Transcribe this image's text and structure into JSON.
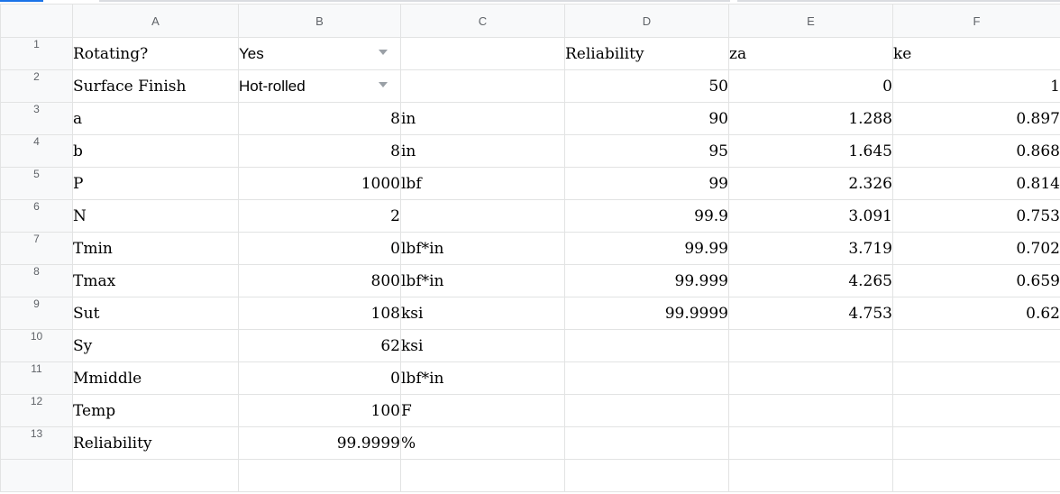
{
  "columns": [
    "A",
    "B",
    "C",
    "D",
    "E",
    "F"
  ],
  "rows": [
    {
      "num": "1",
      "a": "Rotating?",
      "b": "Yes",
      "c": "",
      "d": "Reliability",
      "e": "za",
      "f": "ke"
    },
    {
      "num": "2",
      "a": "Surface Finish",
      "b": "Hot-rolled",
      "c": "",
      "d": "50",
      "e": "0",
      "f": "1"
    },
    {
      "num": "3",
      "a": "a",
      "b": "8",
      "c": "in",
      "d": "90",
      "e": "1.288",
      "f": "0.897"
    },
    {
      "num": "4",
      "a": "b",
      "b": "8",
      "c": "in",
      "d": "95",
      "e": "1.645",
      "f": "0.868"
    },
    {
      "num": "5",
      "a": "P",
      "b": "1000",
      "c": "lbf",
      "d": "99",
      "e": "2.326",
      "f": "0.814"
    },
    {
      "num": "6",
      "a": "N",
      "b": "2",
      "c": "",
      "d": "99.9",
      "e": "3.091",
      "f": "0.753"
    },
    {
      "num": "7",
      "a": "Tmin",
      "b": "0",
      "c": "lbf*in",
      "d": "99.99",
      "e": "3.719",
      "f": "0.702"
    },
    {
      "num": "8",
      "a": "Tmax",
      "b": "800",
      "c": "lbf*in",
      "d": "99.999",
      "e": "4.265",
      "f": "0.659"
    },
    {
      "num": "9",
      "a": "Sut",
      "b": "108",
      "c": "ksi",
      "d": "99.9999",
      "e": "4.753",
      "f": "0.62"
    },
    {
      "num": "10",
      "a": "Sy",
      "b": "62",
      "c": "ksi",
      "d": "",
      "e": "",
      "f": ""
    },
    {
      "num": "11",
      "a": "Mmiddle",
      "b": "0",
      "c": "lbf*in",
      "d": "",
      "e": "",
      "f": ""
    },
    {
      "num": "12",
      "a": "Temp",
      "b": "100",
      "c": "F",
      "d": "",
      "e": "",
      "f": ""
    },
    {
      "num": "13",
      "a": "Reliability",
      "b": "99.9999",
      "c": "%",
      "d": "",
      "e": "",
      "f": ""
    }
  ],
  "dropdown_icon": "chevron-down-icon",
  "colors": {
    "header_bg": "#f8f9fa",
    "gridline": "#e2e3e3",
    "header_text": "#5f6368",
    "selection_blue": "#1a73e8"
  }
}
